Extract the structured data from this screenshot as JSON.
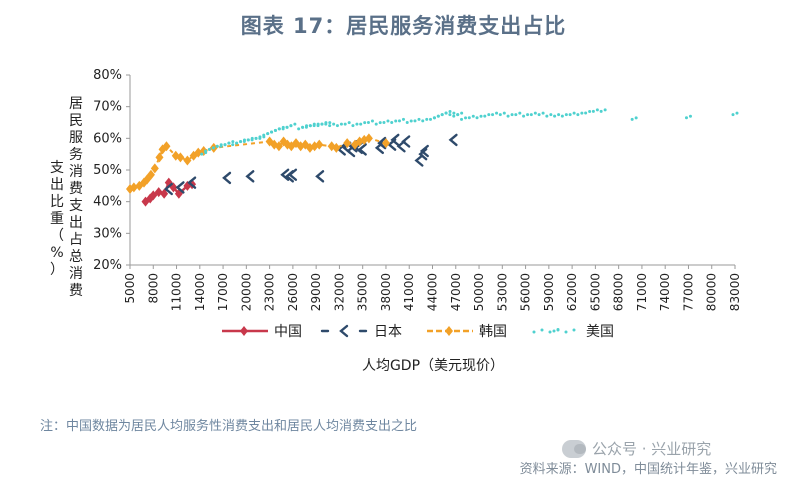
{
  "title": "图表 17：居民服务消费支出占比",
  "note": "注：中国数据为居民人均服务性消费支出和居民人均消费支出之比",
  "source": "资料来源：WIND，中国统计年鉴，兴业研究",
  "watermark": "公众号 · 兴业研究",
  "colors": {
    "china": "#c8384b",
    "japan": "#2e4a6b",
    "korea": "#f2a128",
    "usa": "#4fd1cf",
    "axis": "#999999",
    "title": "#5a7088"
  },
  "chart_data": {
    "type": "line",
    "xlabel": "人均GDP（美元现价）",
    "ylabel": "居民服务消费支出占总消费支出比重（%）",
    "ylim": [
      20,
      80
    ],
    "yticks": [
      "20%",
      "30%",
      "40%",
      "50%",
      "60%",
      "70%",
      "80%"
    ],
    "xticks": [
      "5000",
      "8000",
      "11000",
      "14000",
      "17000",
      "20000",
      "23000",
      "26000",
      "29000",
      "32000",
      "35000",
      "38000",
      "41000",
      "44000",
      "47000",
      "50000",
      "53000",
      "56000",
      "59000",
      "62000",
      "65000",
      "68000",
      "71000",
      "74000",
      "77000",
      "80000",
      "83000"
    ],
    "legend": [
      "中国",
      "日本",
      "韩国",
      "美国"
    ],
    "series": [
      {
        "name": "中国",
        "color": "#c8384b",
        "marker": "diamond",
        "points": [
          [
            7000,
            40
          ],
          [
            7600,
            41
          ],
          [
            8000,
            42
          ],
          [
            8700,
            43
          ],
          [
            9400,
            42.5
          ],
          [
            10000,
            46
          ],
          [
            10600,
            44.5
          ],
          [
            11300,
            42.5
          ],
          [
            12400,
            45
          ],
          [
            13000,
            45.5
          ]
        ]
      },
      {
        "name": "日本",
        "color": "#2e4a6b",
        "marker": "chevron",
        "points": [
          [
            10000,
            44
          ],
          [
            11500,
            44.5
          ],
          [
            13000,
            46
          ],
          [
            17500,
            47.5
          ],
          [
            20500,
            48
          ],
          [
            25000,
            48.5
          ],
          [
            25600,
            48
          ],
          [
            26000,
            48.5
          ],
          [
            29500,
            48
          ],
          [
            32300,
            56.5
          ],
          [
            33000,
            57
          ],
          [
            33500,
            56
          ],
          [
            33800,
            57.5
          ],
          [
            34500,
            57
          ],
          [
            35000,
            56.5
          ],
          [
            37200,
            57
          ],
          [
            37500,
            58.5
          ],
          [
            38800,
            58
          ],
          [
            39200,
            59.5
          ],
          [
            40000,
            57.5
          ],
          [
            40600,
            59
          ],
          [
            42300,
            53
          ],
          [
            42800,
            55
          ],
          [
            43000,
            56
          ],
          [
            46700,
            59.5
          ]
        ]
      },
      {
        "name": "韩国",
        "color": "#f2a128",
        "marker": "diamond",
        "points": [
          [
            5000,
            44
          ],
          [
            5500,
            44.5
          ],
          [
            6200,
            45
          ],
          [
            6800,
            46
          ],
          [
            7200,
            47
          ],
          [
            7700,
            48.5
          ],
          [
            8200,
            50.5
          ],
          [
            8800,
            54
          ],
          [
            9200,
            56.5
          ],
          [
            9700,
            57.5
          ],
          [
            10900,
            54.5
          ],
          [
            11500,
            54
          ],
          [
            12400,
            53
          ],
          [
            13200,
            54.5
          ],
          [
            13800,
            55.5
          ],
          [
            14500,
            56
          ],
          [
            15800,
            57
          ],
          [
            23000,
            59
          ],
          [
            23600,
            58
          ],
          [
            24200,
            57.5
          ],
          [
            24800,
            59
          ],
          [
            25300,
            58
          ],
          [
            25800,
            57.5
          ],
          [
            26400,
            58.5
          ],
          [
            27000,
            57.5
          ],
          [
            27600,
            58
          ],
          [
            28200,
            57
          ],
          [
            28800,
            57.5
          ],
          [
            29400,
            58
          ],
          [
            31000,
            57.5
          ],
          [
            31600,
            57
          ],
          [
            33000,
            58.5
          ],
          [
            34000,
            58
          ],
          [
            34600,
            59
          ],
          [
            35200,
            59.5
          ],
          [
            35800,
            60
          ],
          [
            38000,
            58.5
          ]
        ]
      },
      {
        "name": "美国",
        "color": "#4fd1cf",
        "marker": "dots",
        "points": [
          [
            14500,
            55
          ],
          [
            15000,
            56
          ],
          [
            15500,
            56.5
          ],
          [
            16000,
            57
          ],
          [
            16500,
            57.5
          ],
          [
            17000,
            57.5
          ],
          [
            17500,
            58
          ],
          [
            18000,
            58.5
          ],
          [
            18500,
            58
          ],
          [
            19000,
            58.5
          ],
          [
            19500,
            59
          ],
          [
            20000,
            59
          ],
          [
            20500,
            59.5
          ],
          [
            21000,
            59.5
          ],
          [
            21500,
            60
          ],
          [
            22000,
            60
          ],
          [
            22500,
            61
          ],
          [
            23000,
            61.5
          ],
          [
            23500,
            62
          ],
          [
            24000,
            62.5
          ],
          [
            24500,
            63
          ],
          [
            25000,
            63
          ],
          [
            25500,
            63.5
          ],
          [
            26000,
            64
          ],
          [
            27000,
            63
          ],
          [
            27500,
            63.5
          ],
          [
            28000,
            63.5
          ],
          [
            28500,
            64
          ],
          [
            29000,
            64
          ],
          [
            29500,
            64
          ],
          [
            30000,
            64.5
          ],
          [
            30500,
            64.5
          ],
          [
            31000,
            64
          ],
          [
            32000,
            64
          ],
          [
            33000,
            64.5
          ],
          [
            34000,
            64
          ],
          [
            35000,
            64.5
          ],
          [
            36000,
            65
          ],
          [
            37000,
            64.5
          ],
          [
            38000,
            65
          ],
          [
            39000,
            65
          ],
          [
            40000,
            65.5
          ],
          [
            41000,
            65
          ],
          [
            42000,
            65.5
          ],
          [
            43000,
            65.5
          ],
          [
            44000,
            66
          ],
          [
            44500,
            66.5
          ],
          [
            45000,
            67
          ],
          [
            45500,
            67.5
          ],
          [
            46000,
            68
          ],
          [
            46500,
            67.5
          ],
          [
            47000,
            67
          ],
          [
            47500,
            67.5
          ],
          [
            48000,
            66
          ],
          [
            49000,
            66.5
          ],
          [
            50000,
            66.5
          ],
          [
            51000,
            67
          ],
          [
            52000,
            67.5
          ],
          [
            53000,
            67.5
          ],
          [
            54000,
            67
          ],
          [
            55000,
            67.5
          ],
          [
            56000,
            67
          ],
          [
            57000,
            67.5
          ],
          [
            58000,
            67.5
          ],
          [
            59000,
            67
          ],
          [
            60000,
            67
          ],
          [
            61000,
            67
          ],
          [
            62000,
            67.5
          ],
          [
            63000,
            67.5
          ],
          [
            64000,
            68
          ],
          [
            65000,
            68.5
          ],
          [
            66000,
            68.5
          ],
          [
            70000,
            66
          ],
          [
            77000,
            66.5
          ],
          [
            83000,
            67.5
          ]
        ]
      }
    ]
  }
}
